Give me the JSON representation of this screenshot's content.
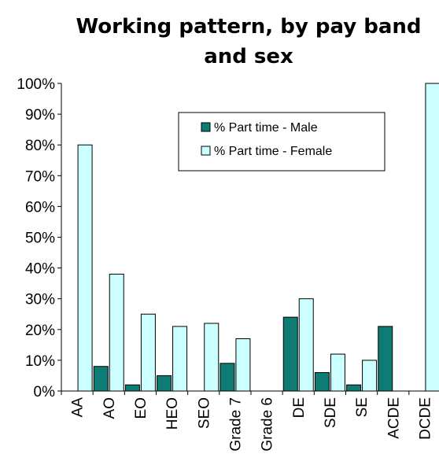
{
  "chart_data": {
    "type": "bar",
    "title_lines": [
      "Working pattern, by pay band",
      "and sex"
    ],
    "categories": [
      "AA",
      "AO",
      "EO",
      "HEO",
      "SEO",
      "Grade 7",
      "Grade 6",
      "DE",
      "SDE",
      "SE",
      "ACDE",
      "DCDE"
    ],
    "series": [
      {
        "name": "% Part time - Male",
        "color": "#0e7b74",
        "values": [
          null,
          8,
          2,
          5,
          null,
          9,
          null,
          24,
          6,
          2,
          21,
          null
        ]
      },
      {
        "name": "% Part time - Female",
        "color": "#ccffff",
        "values": [
          80,
          38,
          25,
          21,
          22,
          17,
          null,
          30,
          12,
          10,
          null,
          100
        ]
      }
    ],
    "ylim": [
      0,
      100
    ],
    "yticks": [
      "0%",
      "10%",
      "20%",
      "30%",
      "40%",
      "50%",
      "60%",
      "70%",
      "80%",
      "90%",
      "100%"
    ],
    "legend_position": "top-center",
    "grid": false
  }
}
